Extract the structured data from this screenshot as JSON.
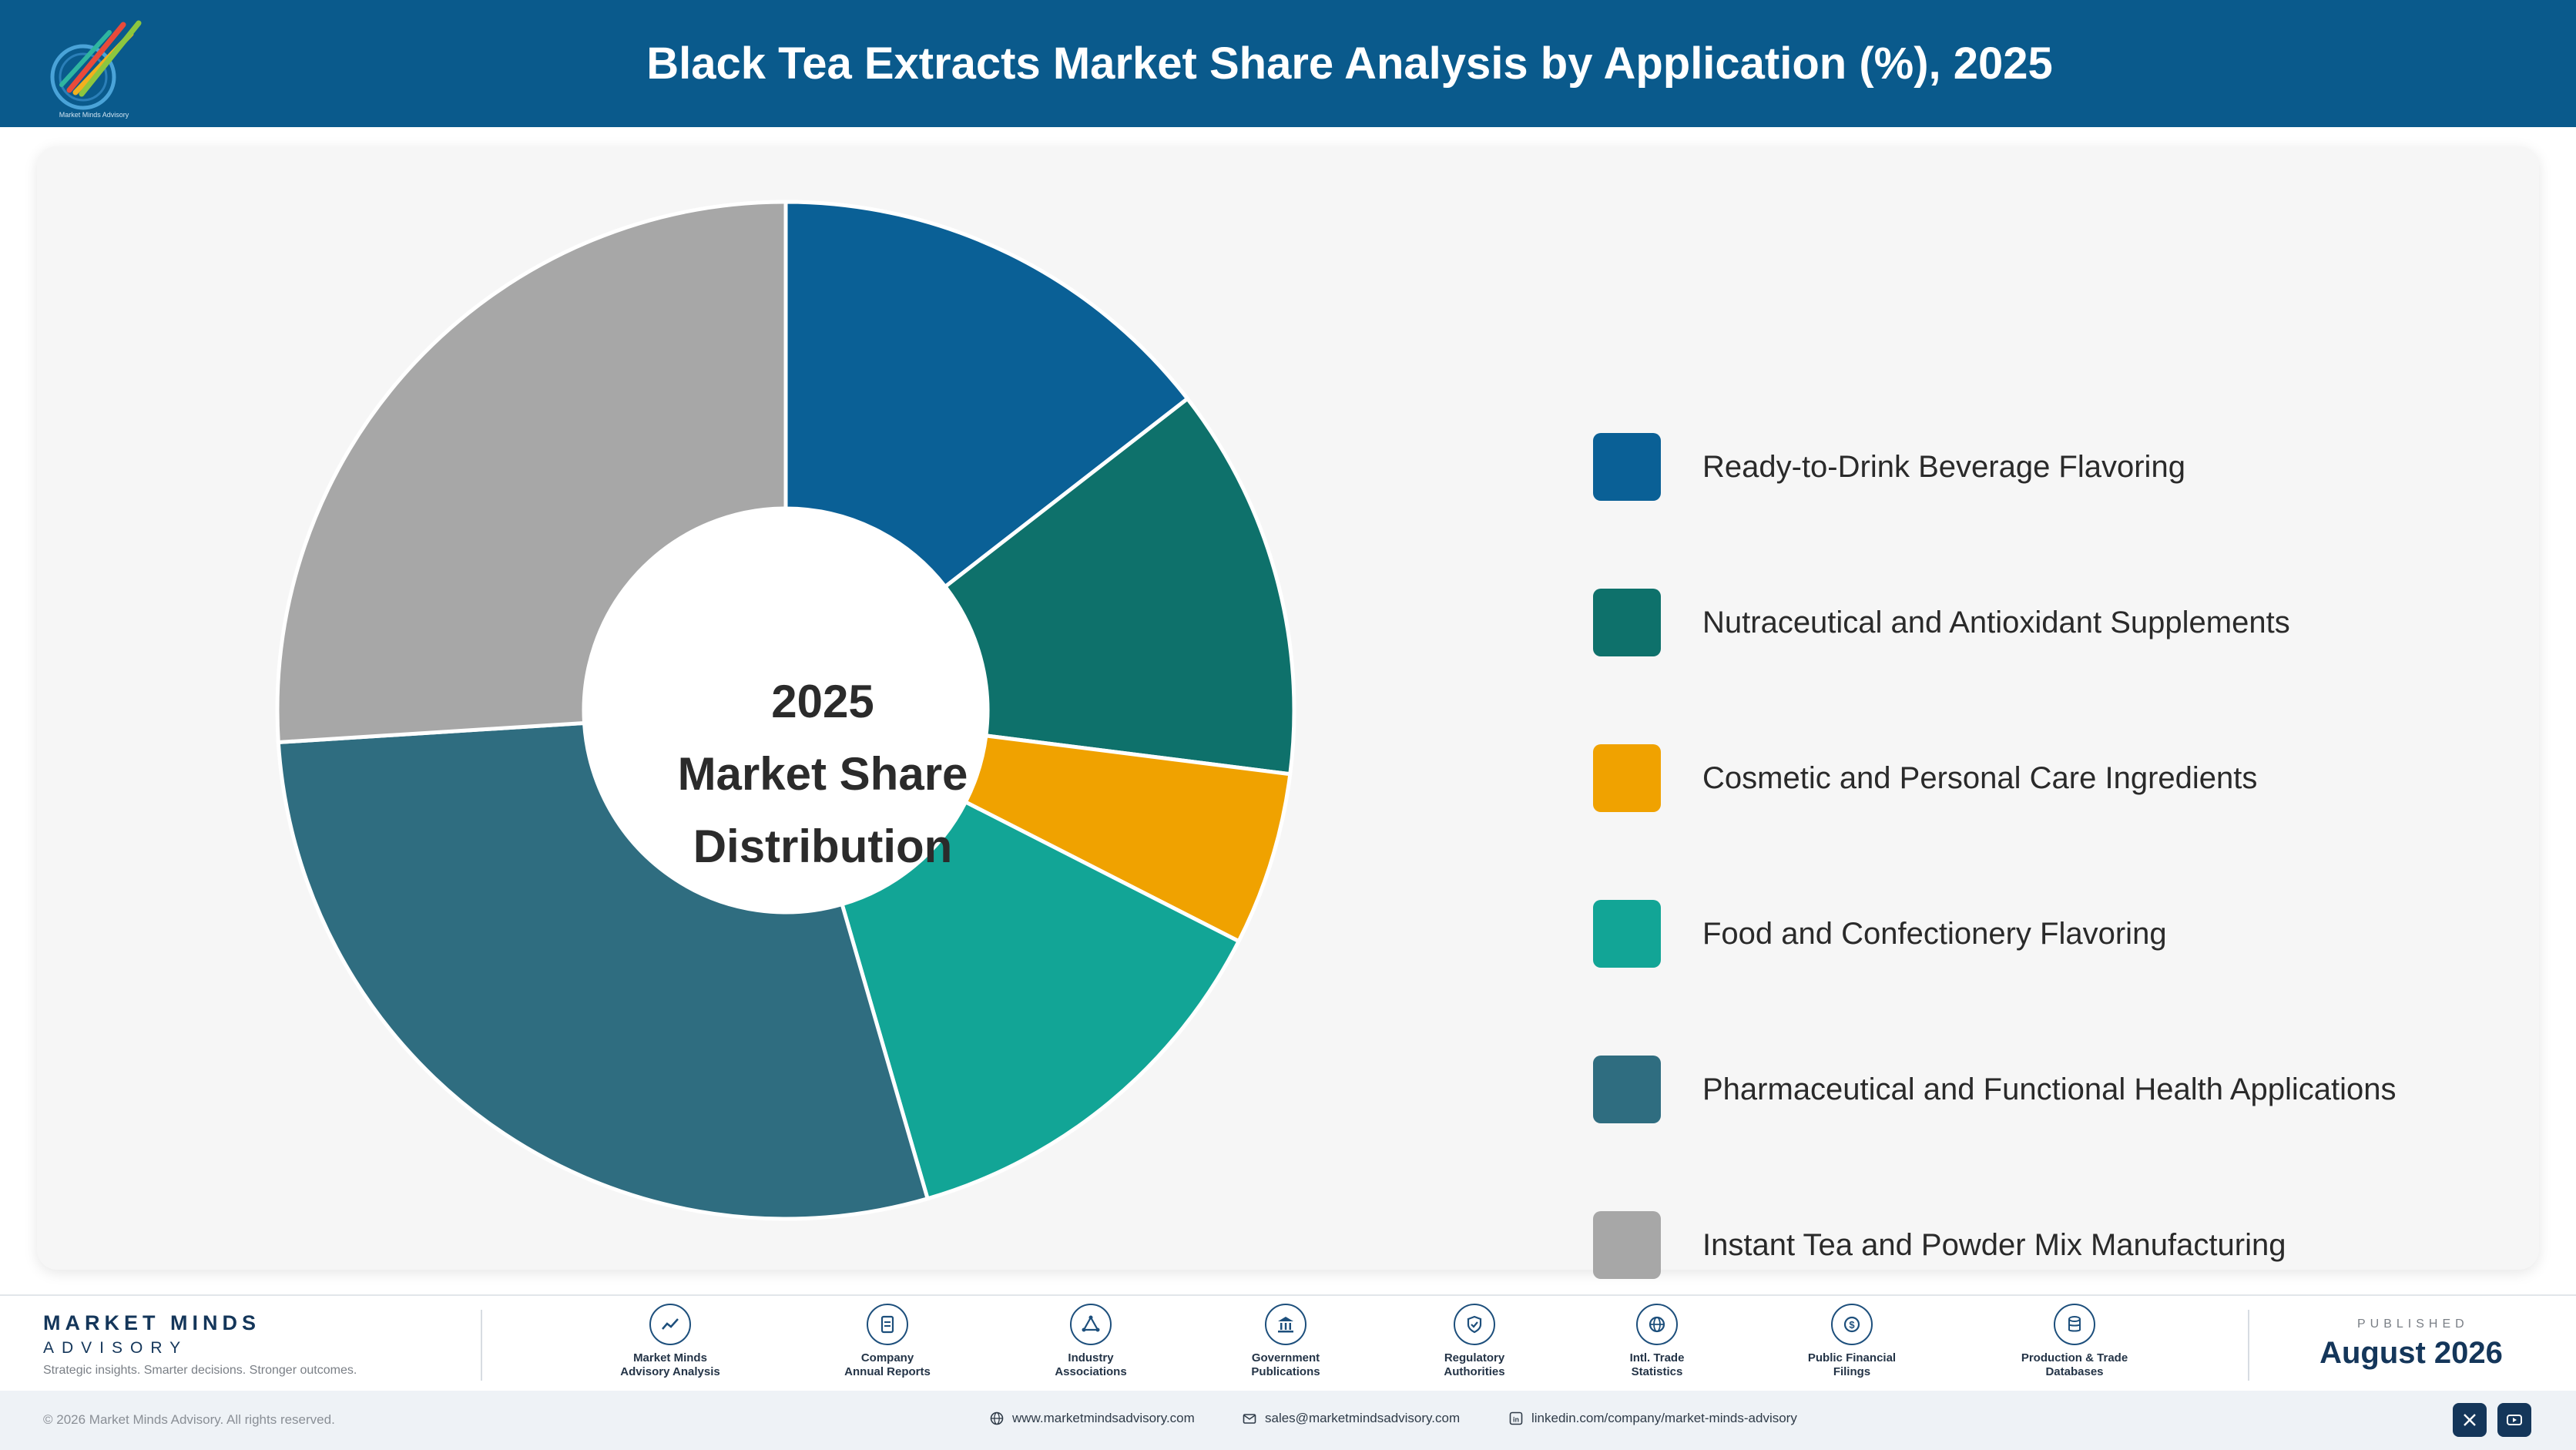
{
  "header": {
    "title": "Black Tea Extracts Market Share Analysis by Application (%), 2025",
    "logo_text": "Market Minds Advisory"
  },
  "chart_data": {
    "type": "pie",
    "title": "Black Tea Extracts Market Share Analysis by Application (%), 2025",
    "donut": true,
    "center_label": [
      "2025",
      "Market Share",
      "Distribution"
    ],
    "categories": [
      "Ready-to-Drink Beverage Flavoring",
      "Nutraceutical and Antioxidant Supplements",
      "Cosmetic and Personal Care Ingredients",
      "Food and Confectionery Flavoring",
      "Pharmaceutical and Functional Health Applications",
      "Instant Tea and Powder Mix Manufacturing"
    ],
    "values": [
      14.5,
      12.5,
      5.5,
      13.0,
      28.5,
      26.0
    ],
    "colors": [
      "#0a6096",
      "#0e716b",
      "#f0a200",
      "#12a596",
      "#2f6d80",
      "#a7a7a7"
    ],
    "legend_position": "right"
  },
  "footer": {
    "brand_name": "MARKET MINDS",
    "brand_sub": "ADVISORY",
    "tagline": "Strategic insights. Smarter decisions. Stronger outcomes.",
    "sources": [
      {
        "line1": "Market Minds",
        "line2": "Advisory Analysis",
        "icon": "trend-icon"
      },
      {
        "line1": "Company",
        "line2": "Annual Reports",
        "icon": "document-icon"
      },
      {
        "line1": "Industry",
        "line2": "Associations",
        "icon": "network-icon"
      },
      {
        "line1": "Government",
        "line2": "Publications",
        "icon": "government-building-icon"
      },
      {
        "line1": "Regulatory",
        "line2": "Authorities",
        "icon": "shield-check-icon"
      },
      {
        "line1": "Intl. Trade",
        "line2": "Statistics",
        "icon": "globe-icon"
      },
      {
        "line1": "Public Financial",
        "line2": "Filings",
        "icon": "dollar-coin-icon"
      },
      {
        "line1": "Production & Trade",
        "line2": "Databases",
        "icon": "database-icon"
      }
    ],
    "published_label": "PUBLISHED",
    "published_date": "August 2026",
    "copyright": "© 2026 Market Minds Advisory. All rights reserved.",
    "website": "www.marketmindsadvisory.com",
    "email": "sales@marketmindsadvisory.com",
    "linkedin": "linkedin.com/company/market-minds-advisory"
  }
}
